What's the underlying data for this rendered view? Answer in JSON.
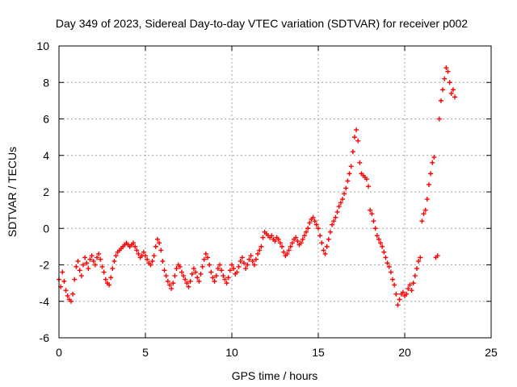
{
  "chart_data": {
    "type": "scatter",
    "title": "Day 349 of 2023, Sidereal Day-to-day VTEC variation (SDTVAR) for receiver p002",
    "xlabel": "GPS time / hours",
    "ylabel": "SDTVAR / TECUs",
    "xlim": [
      0,
      25
    ],
    "ylim": [
      -6,
      10
    ],
    "xticks": [
      0,
      5,
      10,
      15,
      20,
      25
    ],
    "yticks": [
      -6,
      -4,
      -2,
      0,
      2,
      4,
      6,
      8,
      10
    ],
    "grid": true,
    "marker": "+",
    "series": [
      {
        "name": "SDTVAR",
        "color": "#ff0000",
        "x": [
          0.0,
          0.1,
          0.2,
          0.3,
          0.4,
          0.5,
          0.6,
          0.7,
          0.8,
          0.9,
          1.0,
          1.1,
          1.2,
          1.3,
          1.4,
          1.5,
          1.6,
          1.7,
          1.8,
          1.9,
          2.0,
          2.1,
          2.2,
          2.3,
          2.4,
          2.5,
          2.6,
          2.7,
          2.8,
          2.9,
          3.0,
          3.1,
          3.2,
          3.3,
          3.4,
          3.5,
          3.6,
          3.7,
          3.8,
          3.9,
          4.0,
          4.1,
          4.2,
          4.3,
          4.4,
          4.5,
          4.6,
          4.7,
          4.8,
          4.9,
          5.0,
          5.1,
          5.2,
          5.3,
          5.4,
          5.5,
          5.6,
          5.7,
          5.8,
          5.9,
          6.0,
          6.1,
          6.2,
          6.3,
          6.4,
          6.5,
          6.6,
          6.7,
          6.8,
          6.9,
          7.0,
          7.1,
          7.2,
          7.3,
          7.4,
          7.5,
          7.6,
          7.7,
          7.8,
          7.9,
          8.0,
          8.1,
          8.2,
          8.3,
          8.4,
          8.5,
          8.6,
          8.7,
          8.8,
          8.9,
          9.0,
          9.1,
          9.2,
          9.3,
          9.4,
          9.5,
          9.6,
          9.7,
          9.8,
          9.9,
          10.0,
          10.1,
          10.2,
          10.3,
          10.4,
          10.5,
          10.6,
          10.7,
          10.8,
          10.9,
          11.0,
          11.1,
          11.2,
          11.3,
          11.4,
          11.5,
          11.6,
          11.7,
          11.8,
          11.9,
          12.0,
          12.1,
          12.2,
          12.3,
          12.4,
          12.5,
          12.6,
          12.7,
          12.8,
          12.9,
          13.0,
          13.1,
          13.2,
          13.3,
          13.4,
          13.5,
          13.6,
          13.7,
          13.8,
          13.9,
          14.0,
          14.1,
          14.2,
          14.3,
          14.4,
          14.5,
          14.6,
          14.7,
          14.8,
          14.9,
          15.0,
          15.1,
          15.2,
          15.3,
          15.4,
          15.5,
          15.6,
          15.7,
          15.8,
          15.9,
          16.0,
          16.1,
          16.2,
          16.3,
          16.4,
          16.5,
          16.6,
          16.7,
          16.8,
          16.9,
          17.0,
          17.1,
          17.2,
          17.3,
          17.4,
          17.5,
          17.6,
          17.7,
          17.8,
          17.9,
          18.0,
          18.1,
          18.2,
          18.3,
          18.4,
          18.5,
          18.6,
          18.7,
          18.8,
          18.9,
          19.0,
          19.1,
          19.2,
          19.3,
          19.4,
          19.5,
          19.6,
          19.7,
          19.8,
          19.9,
          20.0,
          20.1,
          20.2,
          20.3,
          20.4,
          20.5,
          20.6,
          20.7,
          20.8,
          20.9,
          21.0,
          21.1,
          21.2,
          21.3,
          21.4,
          21.5,
          21.6,
          21.7,
          21.8,
          21.9,
          22.0,
          22.1,
          22.2,
          22.3,
          22.4,
          22.5,
          22.6,
          22.7,
          22.8,
          22.9
        ],
        "y": [
          -2.8,
          -3.2,
          -2.4,
          -2.9,
          -3.4,
          -3.7,
          -3.9,
          -4.0,
          -3.6,
          -2.8,
          -2.1,
          -1.8,
          -2.3,
          -2.6,
          -2.0,
          -1.6,
          -1.9,
          -2.2,
          -1.7,
          -1.5,
          -1.8,
          -2.0,
          -1.6,
          -1.4,
          -1.7,
          -2.1,
          -2.4,
          -2.8,
          -3.0,
          -3.1,
          -2.7,
          -2.2,
          -1.8,
          -1.5,
          -1.3,
          -1.2,
          -1.1,
          -1.0,
          -0.9,
          -0.8,
          -0.9,
          -1.0,
          -0.9,
          -0.8,
          -1.0,
          -1.2,
          -1.4,
          -1.6,
          -1.5,
          -1.3,
          -1.5,
          -1.7,
          -1.9,
          -2.0,
          -1.8,
          -1.5,
          -1.0,
          -0.6,
          -0.8,
          -1.2,
          -1.8,
          -2.3,
          -2.6,
          -2.9,
          -3.1,
          -3.3,
          -3.0,
          -2.6,
          -2.2,
          -2.0,
          -2.1,
          -2.4,
          -2.6,
          -2.8,
          -3.0,
          -3.2,
          -2.9,
          -2.5,
          -2.2,
          -2.4,
          -2.7,
          -2.9,
          -2.5,
          -2.1,
          -1.7,
          -1.4,
          -1.6,
          -2.0,
          -2.4,
          -2.7,
          -2.9,
          -2.6,
          -2.2,
          -2.0,
          -2.3,
          -2.6,
          -2.8,
          -3.0,
          -2.7,
          -2.3,
          -2.0,
          -2.2,
          -2.5,
          -2.4,
          -2.1,
          -1.8,
          -1.6,
          -1.9,
          -2.2,
          -2.0,
          -1.7,
          -1.5,
          -1.8,
          -2.0,
          -1.7,
          -1.4,
          -1.2,
          -1.0,
          -0.5,
          -0.2,
          -0.3,
          -0.4,
          -0.5,
          -0.4,
          -0.6,
          -0.7,
          -0.5,
          -0.6,
          -0.8,
          -1.0,
          -1.3,
          -1.5,
          -1.4,
          -1.2,
          -1.0,
          -0.8,
          -0.6,
          -0.5,
          -0.7,
          -0.9,
          -0.8,
          -0.6,
          -0.4,
          -0.2,
          0.0,
          0.3,
          0.5,
          0.6,
          0.4,
          0.2,
          0.0,
          -0.4,
          -0.8,
          -1.2,
          -1.4,
          -1.0,
          -0.6,
          -0.2,
          0.2,
          0.4,
          0.6,
          0.9,
          1.2,
          1.4,
          1.6,
          1.9,
          2.2,
          2.6,
          3.0,
          3.4,
          4.2,
          5.0,
          5.4,
          4.8,
          3.6,
          3.0,
          2.9,
          2.8,
          2.7,
          2.3,
          1.0,
          0.8,
          0.4,
          0.0,
          -0.4,
          -0.6,
          -0.8,
          -1.0,
          -1.3,
          -1.6,
          -1.9,
          -2.1,
          -2.4,
          -2.8,
          -3.1,
          -3.6,
          -4.2,
          -3.9,
          -3.6,
          -3.5,
          -3.7,
          -3.6,
          -3.3,
          -3.1,
          -3.4,
          -3.0,
          -2.6,
          -2.2,
          -1.8,
          -1.6,
          0.4,
          0.8,
          1.0,
          1.6,
          2.4,
          3.0,
          3.6,
          3.9,
          -1.6,
          -1.5,
          6.0,
          7.0,
          7.6,
          8.2,
          8.8,
          8.6,
          8.0,
          7.4,
          7.6,
          7.2
        ]
      }
    ]
  }
}
